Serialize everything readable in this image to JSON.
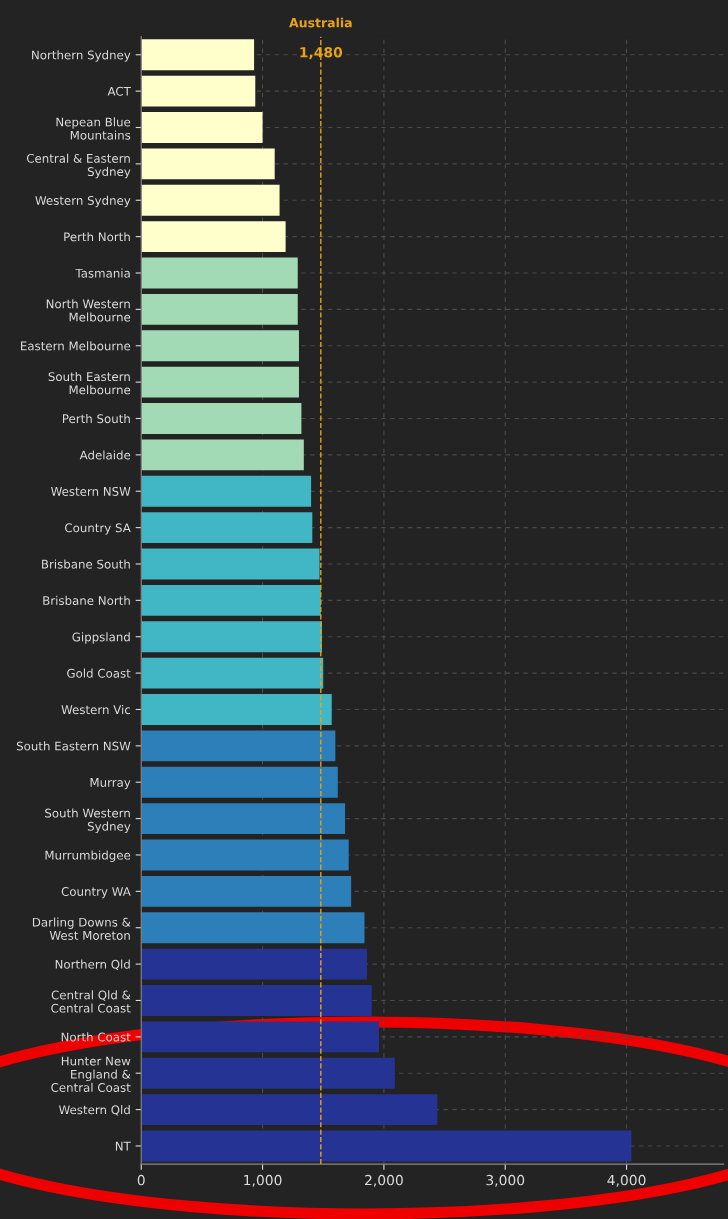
{
  "chart_data": {
    "type": "bar",
    "orientation": "horizontal",
    "categories": [
      "Northern Sydney",
      "ACT",
      "Nepean Blue\nMountains",
      "Central & Eastern\nSydney",
      "Western Sydney",
      "Perth North",
      "Tasmania",
      "North Western\nMelbourne",
      "Eastern Melbourne",
      "South Eastern\nMelbourne",
      "Perth South",
      "Adelaide",
      "Western NSW",
      "Country SA",
      "Brisbane South",
      "Brisbane North",
      "Gippsland",
      "Gold Coast",
      "Western Vic",
      "South Eastern NSW",
      "Murray",
      "South Western\nSydney",
      "Murrumbidgee",
      "Country WA",
      "Darling Downs &\nWest Moreton",
      "Northern Qld",
      "Central Qld &\nCentral Coast",
      "North Coast",
      "Hunter New\nEngland &\nCentral Coast",
      "Western Qld",
      "NT"
    ],
    "values": [
      930,
      940,
      1000,
      1100,
      1140,
      1190,
      1290,
      1290,
      1300,
      1300,
      1320,
      1340,
      1400,
      1410,
      1470,
      1480,
      1490,
      1500,
      1570,
      1600,
      1620,
      1680,
      1710,
      1730,
      1840,
      1860,
      1900,
      1960,
      2090,
      2440,
      4040
    ],
    "colors": [
      "#ffffcc",
      "#ffffcc",
      "#ffffcc",
      "#ffffcc",
      "#ffffcc",
      "#ffffcc",
      "#a1dab4",
      "#a1dab4",
      "#a1dab4",
      "#a1dab4",
      "#a1dab4",
      "#a1dab4",
      "#41b6c4",
      "#41b6c4",
      "#41b6c4",
      "#41b6c4",
      "#41b6c4",
      "#41b6c4",
      "#41b6c4",
      "#2c7fb8",
      "#2c7fb8",
      "#2c7fb8",
      "#2c7fb8",
      "#2c7fb8",
      "#2c7fb8",
      "#253494",
      "#253494",
      "#253494",
      "#253494",
      "#253494",
      "#253494"
    ],
    "xlim": [
      0,
      4800
    ],
    "xticks": [
      {
        "value": 0,
        "label": "0"
      },
      {
        "value": 1000,
        "label": "1,000"
      },
      {
        "value": 2000,
        "label": "2,000"
      },
      {
        "value": 3000,
        "label": "3,000"
      },
      {
        "value": 4000,
        "label": "4,000"
      }
    ],
    "ref_lines": [
      {
        "axis": "x",
        "value": 1480,
        "label": "Australia",
        "color": "#e8a317",
        "line_style": "dashed"
      }
    ],
    "annotations": [
      {
        "text": "1,480",
        "x": 1480
      }
    ],
    "grid": true
  }
}
